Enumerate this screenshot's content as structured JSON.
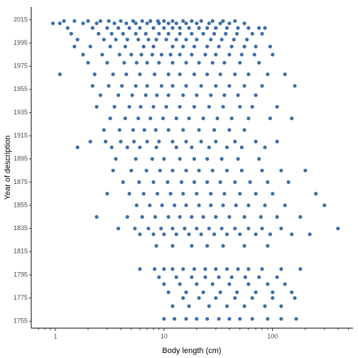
{
  "chart_data": {
    "type": "scatter",
    "x_label": "Body length (cm)",
    "y_label": "Year of description",
    "xlim": [
      0.6,
      550
    ],
    "ylim": [
      1749,
      2026
    ],
    "log_x": true,
    "grid": false,
    "xticks": [
      1,
      10,
      100
    ],
    "xminorticks": [
      0.7,
      0.8,
      0.9,
      2,
      3,
      4,
      5,
      6,
      7,
      8,
      9,
      20,
      30,
      40,
      50,
      60,
      70,
      80,
      90,
      200,
      300,
      400,
      500
    ],
    "yticks": [
      1755,
      1775,
      1795,
      1815,
      1835,
      1855,
      1875,
      1895,
      1915,
      1935,
      1955,
      1975,
      1995,
      2015
    ],
    "series": [
      {
        "color": "#3c6ea7",
        "x": [
          1.2,
          1.5,
          2.0,
          2.6,
          3.1,
          4.0,
          5.2,
          6.3,
          7.5,
          8.8,
          10,
          12,
          15,
          18,
          22,
          28,
          35,
          45,
          0.95,
          1.1,
          1.8,
          2.4,
          3.5,
          4.5,
          5.5,
          7,
          9,
          11,
          13,
          16,
          20,
          26,
          33,
          40,
          55,
          1.3,
          2.2,
          3.0,
          3.8,
          4.8,
          6,
          8,
          10,
          12,
          14,
          17,
          21,
          25,
          30,
          38,
          48,
          60,
          75,
          85,
          1.4,
          2.5,
          3.3,
          4.2,
          5.5,
          6.8,
          9,
          11,
          14,
          18,
          23,
          29,
          37,
          47,
          65,
          80,
          1.6,
          2.8,
          3.6,
          4.6,
          5.8,
          7.2,
          8.5,
          10.5,
          13,
          16,
          20,
          27,
          34,
          44,
          58,
          1.5,
          2.1,
          3.2,
          4.4,
          6.5,
          8,
          12,
          15,
          19,
          25,
          32,
          42,
          55,
          70,
          95,
          1.8,
          2.7,
          3.9,
          5,
          6.2,
          7.8,
          9.5,
          11.5,
          14,
          18,
          24,
          30,
          40,
          52,
          68,
          100,
          2.0,
          3.0,
          4.3,
          5.6,
          7,
          9,
          12,
          16,
          21,
          28,
          36,
          50,
          75,
          1.1,
          2.3,
          3.4,
          4.5,
          6,
          8.2,
          11,
          14,
          19,
          25,
          33,
          45,
          60,
          90,
          130,
          2.2,
          3.1,
          4.1,
          5.5,
          7,
          9.5,
          12,
          16,
          22,
          30,
          40,
          55,
          80,
          160,
          2.6,
          3.8,
          5.1,
          6.8,
          8.6,
          11,
          15,
          20,
          27,
          36,
          48,
          70,
          2.4,
          3.5,
          4.8,
          6.1,
          8,
          10.5,
          14,
          19,
          26,
          35,
          50,
          65,
          110,
          3.2,
          4.4,
          5.8,
          7.5,
          9.8,
          13,
          17,
          23,
          31,
          42,
          60,
          95,
          150,
          2.8,
          3.9,
          5.2,
          6.6,
          8.4,
          11,
          15,
          21,
          29,
          40,
          55,
          2.1,
          2.9,
          4.0,
          5.3,
          7,
          9,
          12,
          16,
          22,
          30,
          45,
          70,
          110,
          1.6,
          3.3,
          4.6,
          6,
          8.5,
          13,
          18,
          26,
          38,
          52,
          85,
          3.6,
          5.5,
          7.8,
          10,
          14,
          19,
          25,
          34,
          48,
          75,
          3.4,
          5,
          6.9,
          9.2,
          12,
          16,
          21,
          28,
          38,
          52,
          80,
          120,
          200,
          4.2,
          5.9,
          8,
          10.8,
          14.5,
          19,
          25,
          33,
          45,
          62,
          90,
          140,
          3.0,
          4.8,
          6.5,
          8.7,
          11.5,
          15,
          20,
          27,
          36,
          50,
          70,
          100,
          250,
          5.6,
          7.4,
          9.6,
          12.5,
          16,
          21,
          27,
          35,
          46,
          60,
          85,
          130,
          300,
          2.4,
          4.6,
          6.3,
          8.3,
          11,
          14,
          18,
          23,
          30,
          40,
          55,
          78,
          110,
          180,
          3.8,
          5.4,
          7.2,
          9.4,
          12,
          15.5,
          20,
          26,
          34,
          45,
          60,
          80,
          120,
          400,
          6,
          8,
          10,
          13,
          17,
          22,
          29,
          38,
          50,
          70,
          95,
          150,
          220,
          8.5,
          12,
          18,
          25,
          35,
          55,
          90,
          6,
          8.2,
          10,
          12,
          15,
          19,
          24,
          30,
          38,
          48,
          60,
          80,
          120,
          180,
          9,
          13,
          18,
          24,
          32,
          42,
          56,
          75,
          110,
          10,
          14,
          20,
          28,
          40,
          60,
          90,
          130,
          11,
          16,
          23,
          33,
          47,
          70,
          100,
          150,
          15,
          21,
          30,
          45,
          65,
          100,
          160,
          12,
          17,
          26,
          38,
          55,
          85,
          120,
          10,
          12.5,
          16,
          20,
          25,
          32,
          40,
          50,
          65,
          90,
          120,
          165
        ],
        "values": [
          2014,
          2014,
          2014,
          2014,
          2014,
          2014,
          2014,
          2014,
          2014,
          2014,
          2014,
          2014,
          2014,
          2014,
          2014,
          2014,
          2014,
          2014,
          2012,
          2012,
          2012,
          2012,
          2012,
          2012,
          2012,
          2012,
          2012,
          2012,
          2012,
          2012,
          2012,
          2012,
          2012,
          2012,
          2012,
          2008,
          2008,
          2008,
          2008,
          2008,
          2008,
          2008,
          2008,
          2008,
          2008,
          2008,
          2008,
          2008,
          2008,
          2008,
          2008,
          2008,
          2008,
          2008,
          2003,
          2003,
          2003,
          2003,
          2003,
          2003,
          2003,
          2003,
          2003,
          2003,
          2003,
          2003,
          2003,
          2003,
          2003,
          2003,
          1998,
          1998,
          1998,
          1998,
          1998,
          1998,
          1998,
          1998,
          1998,
          1998,
          1998,
          1998,
          1998,
          1998,
          1998,
          1992,
          1992,
          1992,
          1992,
          1992,
          1992,
          1992,
          1992,
          1992,
          1992,
          1992,
          1992,
          1992,
          1992,
          1992,
          1985,
          1985,
          1985,
          1985,
          1985,
          1985,
          1985,
          1985,
          1985,
          1985,
          1985,
          1985,
          1985,
          1985,
          1985,
          1985,
          1978,
          1978,
          1978,
          1978,
          1978,
          1978,
          1978,
          1978,
          1978,
          1978,
          1978,
          1978,
          1978,
          1968,
          1968,
          1968,
          1968,
          1968,
          1968,
          1968,
          1968,
          1968,
          1968,
          1968,
          1968,
          1968,
          1968,
          1968,
          1958,
          1958,
          1958,
          1958,
          1958,
          1958,
          1958,
          1958,
          1958,
          1958,
          1958,
          1958,
          1958,
          1958,
          1950,
          1950,
          1950,
          1950,
          1950,
          1950,
          1950,
          1950,
          1950,
          1950,
          1950,
          1950,
          1940,
          1940,
          1940,
          1940,
          1940,
          1940,
          1940,
          1940,
          1940,
          1940,
          1940,
          1940,
          1940,
          1930,
          1930,
          1930,
          1930,
          1930,
          1930,
          1930,
          1930,
          1930,
          1930,
          1930,
          1930,
          1930,
          1920,
          1920,
          1920,
          1920,
          1920,
          1920,
          1920,
          1920,
          1920,
          1920,
          1920,
          1910,
          1910,
          1910,
          1910,
          1910,
          1910,
          1910,
          1910,
          1910,
          1910,
          1910,
          1910,
          1910,
          1905,
          1905,
          1905,
          1905,
          1905,
          1905,
          1905,
          1905,
          1905,
          1905,
          1905,
          1895,
          1895,
          1895,
          1895,
          1895,
          1895,
          1895,
          1895,
          1895,
          1895,
          1885,
          1885,
          1885,
          1885,
          1885,
          1885,
          1885,
          1885,
          1885,
          1885,
          1885,
          1885,
          1885,
          1875,
          1875,
          1875,
          1875,
          1875,
          1875,
          1875,
          1875,
          1875,
          1875,
          1875,
          1875,
          1865,
          1865,
          1865,
          1865,
          1865,
          1865,
          1865,
          1865,
          1865,
          1865,
          1865,
          1865,
          1865,
          1855,
          1855,
          1855,
          1855,
          1855,
          1855,
          1855,
          1855,
          1855,
          1855,
          1855,
          1855,
          1855,
          1845,
          1845,
          1845,
          1845,
          1845,
          1845,
          1845,
          1845,
          1845,
          1845,
          1845,
          1845,
          1845,
          1845,
          1835,
          1835,
          1835,
          1835,
          1835,
          1835,
          1835,
          1835,
          1835,
          1835,
          1835,
          1835,
          1835,
          1835,
          1830,
          1830,
          1830,
          1830,
          1830,
          1830,
          1830,
          1830,
          1830,
          1830,
          1830,
          1830,
          1830,
          1820,
          1820,
          1820,
          1820,
          1820,
          1820,
          1820,
          1800,
          1800,
          1800,
          1800,
          1800,
          1800,
          1800,
          1800,
          1800,
          1800,
          1800,
          1800,
          1800,
          1800,
          1793,
          1793,
          1793,
          1793,
          1793,
          1793,
          1793,
          1793,
          1793,
          1787,
          1787,
          1787,
          1787,
          1787,
          1787,
          1787,
          1787,
          1780,
          1780,
          1780,
          1780,
          1780,
          1780,
          1780,
          1780,
          1775,
          1775,
          1775,
          1775,
          1775,
          1775,
          1775,
          1768,
          1768,
          1768,
          1768,
          1768,
          1768,
          1768,
          1757,
          1757,
          1757,
          1757,
          1757,
          1757,
          1757,
          1757,
          1757,
          1757,
          1757,
          1757
        ]
      }
    ]
  }
}
